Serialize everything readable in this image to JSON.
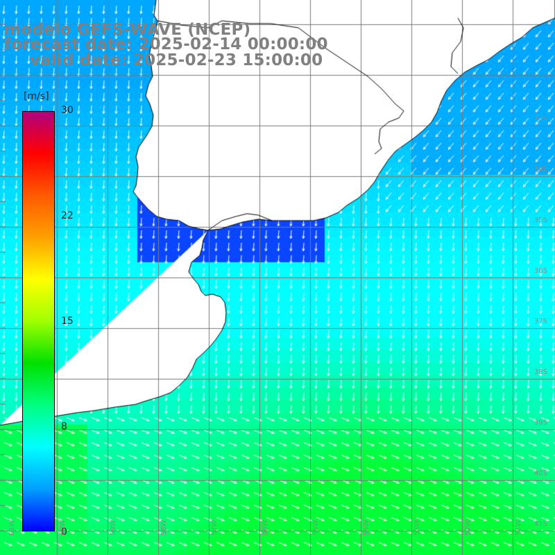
{
  "title": {
    "line1": "modelo GEFS-WAVE (NCEP)",
    "line2": "forecast date: 2025-02-14 00:00:00",
    "line3": "valid date: 2025-02-23 15:00:00"
  },
  "colorbar": {
    "unit": "[m/s]",
    "ticks": [
      "30",
      "22",
      "15",
      "8",
      "0"
    ],
    "colors": [
      "#0000ff",
      "#00a0ff",
      "#00ffff",
      "#00ff40",
      "#00e000",
      "#ffff00",
      "#ff8000",
      "#ff0000",
      "#d0006a",
      "#b00080"
    ]
  },
  "lat_labels": [
    "33S",
    "34S",
    "35S",
    "36S",
    "37S",
    "38S",
    "39S",
    "40S",
    "41S"
  ],
  "lon_labels": [
    "61W",
    "60W",
    "59W",
    "58W",
    "57W",
    "56W",
    "55W",
    "54W",
    "53W",
    "52W",
    "51W"
  ],
  "land_color": "#ffffff",
  "grid_color": "#7a7a7a"
}
